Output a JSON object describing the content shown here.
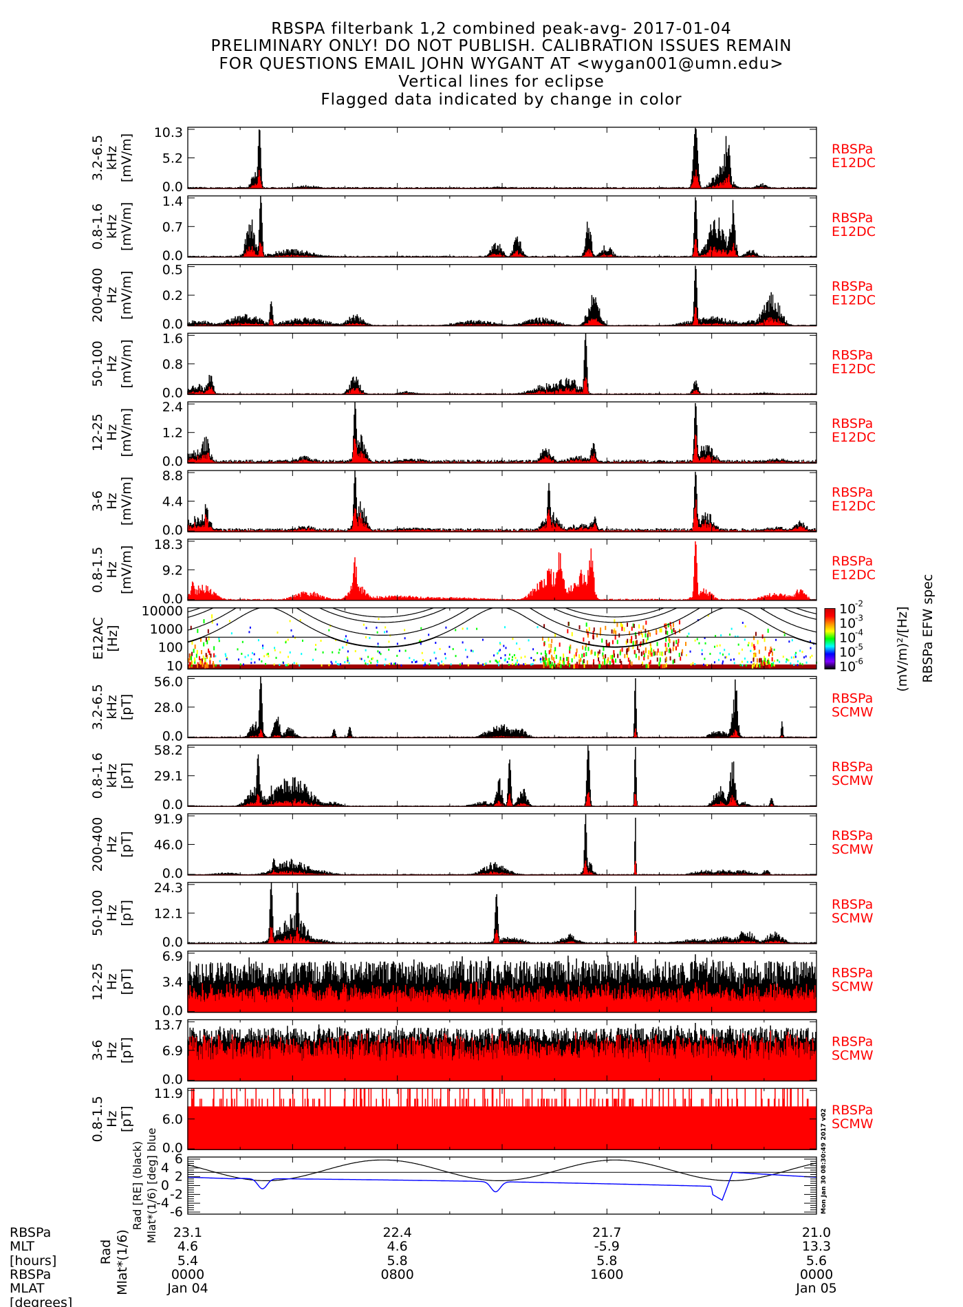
{
  "title_lines": [
    "RBSPA filterbank 1,2 combined peak-avg- 2017-01-04",
    "PRELIMINARY ONLY! DO NOT PUBLISH. CALIBRATION ISSUES REMAIN",
    "FOR QUESTIONS EMAIL JOHN WYGANT AT <wygan001@umn.edu>",
    "Vertical lines for eclipse",
    "Flagged data indicated by change in color"
  ],
  "colors": {
    "peak": "#000000",
    "avg": "#ff0000",
    "mlat": "#0000ff",
    "label": "#ff0000"
  },
  "stamp": "Mon Jan 30 08:30:49 2017 v02",
  "chart_data": [
    {
      "type": "bar",
      "ylabel": [
        "3.2-6.5",
        "kHz",
        "[mV/m]"
      ],
      "right_label": [
        "RBSPa",
        "E12DC"
      ],
      "ylim": [
        0,
        10.3
      ],
      "yticks": [
        "0.0",
        "5.2",
        "10.3"
      ],
      "base": 0.15,
      "red_fraction": 0.3,
      "peaks_hour_value_width": [
        [
          2.75,
          10.3,
          0.05
        ],
        [
          2.6,
          3,
          0.15
        ],
        [
          4.6,
          0.6,
          0.4
        ],
        [
          11.9,
          0.4,
          0.3
        ],
        [
          19.4,
          10.3,
          0.08
        ],
        [
          20.6,
          10.3,
          0.1
        ],
        [
          20.4,
          4,
          0.3
        ],
        [
          21.9,
          1.0,
          0.2
        ]
      ]
    },
    {
      "type": "bar",
      "ylabel": [
        "0.8-1.6",
        "kHz",
        "[mV/m]"
      ],
      "right_label": [
        "RBSPa",
        "E12DC"
      ],
      "ylim": [
        0,
        1.4
      ],
      "yticks": [
        "0.0",
        "0.7",
        "1.4"
      ],
      "base": 0.02,
      "red_fraction": 0.3,
      "peaks_hour_value_width": [
        [
          2.4,
          1.0,
          0.15
        ],
        [
          2.8,
          1.4,
          0.05
        ],
        [
          4.0,
          0.2,
          0.7
        ],
        [
          5.3,
          0.05,
          0.3
        ],
        [
          11.8,
          0.4,
          0.2
        ],
        [
          12.6,
          0.5,
          0.15
        ],
        [
          15.3,
          1.0,
          0.1
        ],
        [
          16,
          0.3,
          0.2
        ],
        [
          19.4,
          1.4,
          0.05
        ],
        [
          20.2,
          1.0,
          0.3
        ],
        [
          20.8,
          1.4,
          0.1
        ],
        [
          21.5,
          0.2,
          0.2
        ]
      ]
    },
    {
      "type": "bar",
      "ylabel": [
        "200-400",
        "Hz",
        "[mV/m]"
      ],
      "right_label": [
        "RBSPa",
        "E12DC"
      ],
      "ylim": [
        0,
        0.5
      ],
      "yticks": [
        "0.0",
        "0.2",
        "0.5"
      ],
      "base": 0.005,
      "red_fraction": 0.3,
      "peaks_hour_value_width": [
        [
          0.4,
          0.05,
          0.5
        ],
        [
          2.2,
          0.1,
          0.6
        ],
        [
          3.2,
          0.2,
          0.05
        ],
        [
          4.5,
          0.07,
          0.8
        ],
        [
          6.4,
          0.1,
          0.3
        ],
        [
          11.0,
          0.05,
          0.7
        ],
        [
          13.5,
          0.07,
          0.6
        ],
        [
          15.5,
          0.3,
          0.2
        ],
        [
          19.4,
          0.5,
          0.05
        ],
        [
          20.0,
          0.08,
          0.8
        ],
        [
          21.5,
          0.05,
          0.4
        ],
        [
          22.3,
          0.3,
          0.3
        ]
      ]
    },
    {
      "type": "bar",
      "ylabel": [
        "50-100",
        "Hz",
        "[mV/m]"
      ],
      "right_label": [
        "RBSPa",
        "E12DC"
      ],
      "ylim": [
        0,
        1.6
      ],
      "yticks": [
        "0.0",
        "0.8",
        "1.6"
      ],
      "base": 0.02,
      "red_fraction": 0.4,
      "peaks_hour_value_width": [
        [
          0.4,
          0.3,
          0.3
        ],
        [
          0.85,
          0.8,
          0.1
        ],
        [
          6.4,
          0.5,
          0.2
        ],
        [
          8.4,
          0.1,
          0.3
        ],
        [
          13.8,
          0.3,
          0.6
        ],
        [
          15.2,
          1.6,
          0.05
        ],
        [
          14.5,
          0.5,
          0.4
        ],
        [
          19.4,
          0.4,
          0.1
        ],
        [
          22.0,
          0.05,
          0.6
        ]
      ]
    },
    {
      "type": "bar",
      "ylabel": [
        "12-25",
        "Hz",
        "[mV/m]"
      ],
      "right_label": [
        "RBSPa",
        "E12DC"
      ],
      "ylim": [
        0,
        2.4
      ],
      "yticks": [
        "0.0",
        "1.2",
        "2.4"
      ],
      "base": 0.08,
      "red_fraction": 0.5,
      "peaks_hour_value_width": [
        [
          0.3,
          0.6,
          0.3
        ],
        [
          0.7,
          1.1,
          0.15
        ],
        [
          4.5,
          0.3,
          0.4
        ],
        [
          6.4,
          2.4,
          0.05
        ],
        [
          6.6,
          1.3,
          0.2
        ],
        [
          8.6,
          0.2,
          0.6
        ],
        [
          13.7,
          0.8,
          0.2
        ],
        [
          15.5,
          0.8,
          0.1
        ],
        [
          15,
          0.3,
          0.5
        ],
        [
          19.4,
          2.4,
          0.05
        ],
        [
          19.8,
          0.8,
          0.3
        ],
        [
          22.5,
          0.2,
          0.5
        ]
      ]
    },
    {
      "type": "bar",
      "ylabel": [
        "3-6",
        "Hz",
        "[mV/m]"
      ],
      "right_label": [
        "RBSPa",
        "E12DC"
      ],
      "ylim": [
        0,
        8.8
      ],
      "yticks": [
        "0.0",
        "4.4",
        "8.8"
      ],
      "base": 0.3,
      "red_fraction": 0.6,
      "peaks_hour_value_width": [
        [
          0.3,
          2.5,
          0.3
        ],
        [
          0.7,
          4,
          0.15
        ],
        [
          4.5,
          1.0,
          0.4
        ],
        [
          6.4,
          8.8,
          0.05
        ],
        [
          6.6,
          4.5,
          0.2
        ],
        [
          8.6,
          0.7,
          0.8
        ],
        [
          13.9,
          3,
          0.3
        ],
        [
          13.8,
          7,
          0.05
        ],
        [
          15.5,
          3,
          0.1
        ],
        [
          15,
          1.2,
          0.5
        ],
        [
          19.4,
          8.8,
          0.05
        ],
        [
          19.8,
          3,
          0.3
        ],
        [
          22.5,
          0.8,
          0.5
        ],
        [
          23.4,
          2,
          0.2
        ]
      ]
    },
    {
      "type": "bar",
      "ylabel": [
        "0.8-1.5",
        "Hz",
        "[mV/m]"
      ],
      "right_label": [
        "RBSPa",
        "E12DC"
      ],
      "ylim": [
        0,
        18.3
      ],
      "yticks": [
        "0.0",
        "9.2",
        "18.3"
      ],
      "base": 0.3,
      "red_fraction": 1.0,
      "peaks_hour_value_width": [
        [
          0.2,
          6,
          0.1
        ],
        [
          0.6,
          5,
          0.4
        ],
        [
          4.6,
          3,
          0.5
        ],
        [
          6.4,
          14,
          0.1
        ],
        [
          6.5,
          5,
          0.3
        ],
        [
          8,
          1.5,
          1.5
        ],
        [
          10,
          1,
          1.5
        ],
        [
          13.9,
          10,
          0.5
        ],
        [
          14.2,
          18,
          0.1
        ],
        [
          15.4,
          18,
          0.1
        ],
        [
          15.0,
          10,
          0.3
        ],
        [
          19.4,
          18,
          0.05
        ],
        [
          19.7,
          4,
          0.3
        ],
        [
          22.5,
          2.5,
          0.5
        ],
        [
          23.4,
          4,
          0.2
        ]
      ]
    },
    {
      "type": "heatmap",
      "ylabel": [
        "E12AC",
        "[Hz]"
      ],
      "yticks": [
        "10000",
        "1000",
        "100",
        "10"
      ],
      "ylim_log10": [
        0.8,
        4.15
      ],
      "colorbar": {
        "ticks": [
          "10",
          "10",
          "10",
          "10",
          "10"
        ],
        "exponents": [
          "-2",
          "-3",
          "-4",
          "-5",
          "-6"
        ],
        "unit": "(mV/m)²/[Hz]",
        "title": "RBSPa EFW spec"
      }
    },
    {
      "type": "bar",
      "ylabel": [
        "3.2-6.5",
        "kHz",
        "[pT]"
      ],
      "right_label": [
        "RBSPa",
        "SCMW"
      ],
      "ylim": [
        0,
        56.0
      ],
      "yticks": [
        "0.0",
        "28.0",
        "56.0"
      ],
      "base": 0.7,
      "red_fraction": 0.15,
      "peaks_hour_value_width": [
        [
          2.6,
          15,
          0.2
        ],
        [
          2.8,
          56,
          0.05
        ],
        [
          3.4,
          28,
          0.1
        ],
        [
          3.9,
          10,
          0.2
        ],
        [
          5.6,
          8,
          0.05
        ],
        [
          6.2,
          10,
          0.05
        ],
        [
          11.9,
          15,
          0.4
        ],
        [
          12.6,
          10,
          0.3
        ],
        [
          17.1,
          56,
          0.03
        ],
        [
          20.3,
          8,
          0.3
        ],
        [
          20.9,
          56,
          0.1
        ],
        [
          22.7,
          15,
          0.03
        ]
      ]
    },
    {
      "type": "bar",
      "ylabel": [
        "0.8-1.6",
        "kHz",
        "[pT]"
      ],
      "right_label": [
        "RBSPa",
        "SCMW"
      ],
      "ylim": [
        0,
        58.2
      ],
      "yticks": [
        "0.0",
        "29.1",
        "58.2"
      ],
      "base": 0.5,
      "red_fraction": 0.25,
      "peaks_hour_value_width": [
        [
          2.6,
          20,
          0.3
        ],
        [
          2.7,
          50,
          0.05
        ],
        [
          4,
          30,
          0.6
        ],
        [
          3.2,
          20,
          0.1
        ],
        [
          5.5,
          5,
          0.3
        ],
        [
          11.3,
          5,
          0.4
        ],
        [
          11.9,
          30,
          0.1
        ],
        [
          12.3,
          45,
          0.05
        ],
        [
          12.8,
          20,
          0.15
        ],
        [
          15.3,
          58.2,
          0.05
        ],
        [
          17.1,
          58.2,
          0.03
        ],
        [
          20.3,
          20,
          0.2
        ],
        [
          20.8,
          50,
          0.1
        ],
        [
          21.2,
          5,
          0.2
        ],
        [
          22.3,
          8,
          0.05
        ]
      ]
    },
    {
      "type": "bar",
      "ylabel": [
        "200-400",
        "Hz",
        "[pT]"
      ],
      "right_label": [
        "RBSPa",
        "SCMW"
      ],
      "ylim": [
        0,
        91.9
      ],
      "yticks": [
        "0.0",
        "46.0",
        "91.9"
      ],
      "base": 1,
      "red_fraction": 0.3,
      "peaks_hour_value_width": [
        [
          1.5,
          4,
          0.5
        ],
        [
          3.3,
          25,
          0.05
        ],
        [
          4,
          25,
          0.6
        ],
        [
          5,
          8,
          0.5
        ],
        [
          11.7,
          20,
          0.4
        ],
        [
          12.2,
          8,
          0.3
        ],
        [
          15.2,
          91.9,
          0.04
        ],
        [
          15.3,
          25,
          0.15
        ],
        [
          17.1,
          91.9,
          0.02
        ],
        [
          19.7,
          8,
          0.4
        ],
        [
          20.5,
          10,
          0.3
        ],
        [
          21.2,
          8,
          0.4
        ],
        [
          22.1,
          10,
          0.1
        ]
      ]
    },
    {
      "type": "bar",
      "ylabel": [
        "50-100",
        "Hz",
        "[pT]"
      ],
      "right_label": [
        "RBSPa",
        "SCMW"
      ],
      "ylim": [
        0,
        24.3
      ],
      "yticks": [
        "0.0",
        "12.1",
        "24.3"
      ],
      "base": 0.4,
      "red_fraction": 0.3,
      "peaks_hour_value_width": [
        [
          3.2,
          24.3,
          0.05
        ],
        [
          4.0,
          12,
          0.5
        ],
        [
          4.2,
          24,
          0.05
        ],
        [
          5,
          2,
          0.5
        ],
        [
          11.8,
          20,
          0.05
        ],
        [
          12.3,
          3,
          0.5
        ],
        [
          14.6,
          4,
          0.3
        ],
        [
          17.1,
          24.3,
          0.02
        ],
        [
          19.5,
          2,
          0.8
        ],
        [
          20.5,
          3,
          0.4
        ],
        [
          21.3,
          6,
          0.3
        ],
        [
          22.4,
          5,
          0.3
        ]
      ]
    },
    {
      "type": "bar",
      "ylabel": [
        "12-25",
        "Hz",
        "[pT]"
      ],
      "right_label": [
        "RBSPa",
        "SCMW"
      ],
      "ylim": [
        0,
        6.9
      ],
      "yticks": [
        "0.0",
        "3.4",
        "6.9"
      ],
      "base": 4.5,
      "jitter": 1.3,
      "red_fraction": 0.55,
      "peaks_hour_value_width": [
        [
          17.1,
          6.9,
          0.02
        ],
        [
          19.4,
          6.9,
          0.03
        ]
      ]
    },
    {
      "type": "bar",
      "ylabel": [
        "3-6",
        "Hz",
        "[pT]"
      ],
      "right_label": [
        "RBSPa",
        "SCMW"
      ],
      "ylim": [
        0,
        13.7
      ],
      "yticks": [
        "0.0",
        "6.9",
        "13.7"
      ],
      "base": 10.3,
      "jitter": 1.6,
      "red_fraction": 0.85,
      "peaks_hour_value_width": [
        [
          17.1,
          13.7,
          0.02
        ],
        [
          19.4,
          13.7,
          0.03
        ]
      ]
    },
    {
      "type": "bar",
      "ylabel": [
        "0.8-1.5",
        "Hz",
        "[pT]"
      ],
      "right_label": [
        "RBSPa",
        "SCMW"
      ],
      "ylim": [
        0,
        11.9
      ],
      "yticks": [
        "0.0",
        "6.0",
        "11.9"
      ],
      "base": 8.3,
      "jitter": 1.5,
      "red_fraction": 1.0,
      "quantized": true,
      "peaks_hour_value_width": []
    },
    {
      "type": "line",
      "ylabel": [
        "Rad [RE] (black)",
        "Mlat*(1/6) [deg] blue"
      ],
      "yticks": [
        "6",
        "4",
        "2",
        "0",
        "-2",
        "-4",
        "-6"
      ],
      "ylim": [
        -6,
        6
      ],
      "perigee_hours": [
        3.0,
        11.9,
        20.7
      ],
      "rad_range": [
        1.1,
        5.8
      ]
    }
  ],
  "xaxis": {
    "range_hours": [
      0,
      24
    ],
    "row_labels": [
      "RBSPa",
      "MLT",
      "[hours]",
      "RBSPa",
      "MLAT",
      "[degrees]",
      "RBSP"
    ],
    "columns": [
      {
        "hour": 0,
        "rad": "23.1",
        "mlt": "4.6",
        "mlat": "5.4",
        "time": "0000",
        "date": "Jan 04"
      },
      {
        "hour": 8,
        "rad": "22.4",
        "mlt": "4.6",
        "mlat": "5.8",
        "time": "0800",
        "date": ""
      },
      {
        "hour": 16,
        "rad": "21.7",
        "mlt": "-5.9",
        "mlat": "5.8",
        "time": "1600",
        "date": ""
      },
      {
        "hour": 24,
        "rad": "21.0",
        "mlt": "13.3",
        "mlat": "5.6",
        "time": "0000",
        "date": "Jan 05"
      }
    ],
    "rotated_labels": [
      "Rad",
      "Mlat*(1/6)"
    ]
  }
}
